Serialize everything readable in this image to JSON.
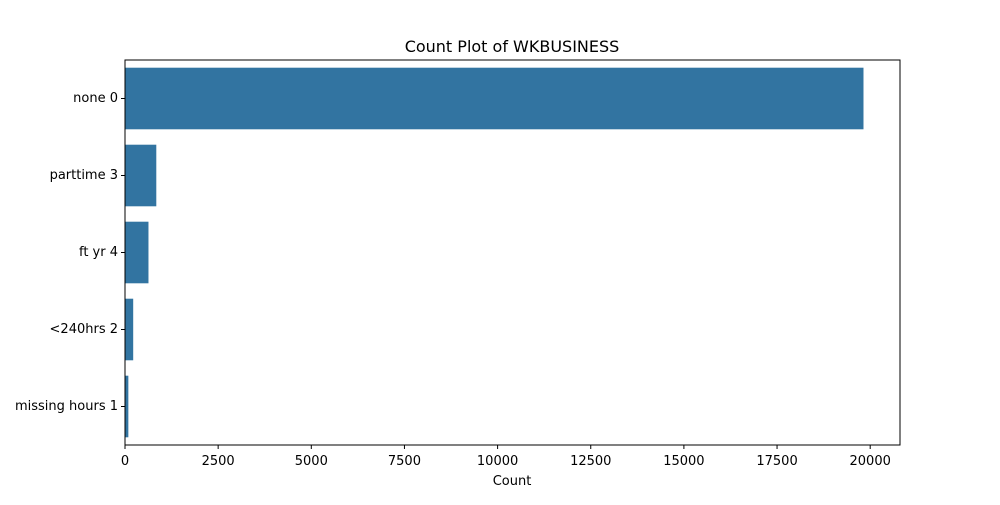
{
  "chart_data": {
    "type": "bar",
    "orientation": "horizontal",
    "title": "Count Plot of WKBUSINESS",
    "xlabel": "Count",
    "ylabel": "",
    "categories": [
      "none 0",
      "parttime 3",
      "ft yr 4",
      "<240hrs 2",
      "missing hours 1"
    ],
    "values": [
      19820,
      840,
      630,
      220,
      90
    ],
    "xlim": [
      0,
      20800
    ],
    "xticks": [
      0,
      2500,
      5000,
      7500,
      10000,
      12500,
      15000,
      17500,
      20000
    ],
    "bar_color": "#3274a1",
    "grid": false,
    "legend": "none"
  }
}
